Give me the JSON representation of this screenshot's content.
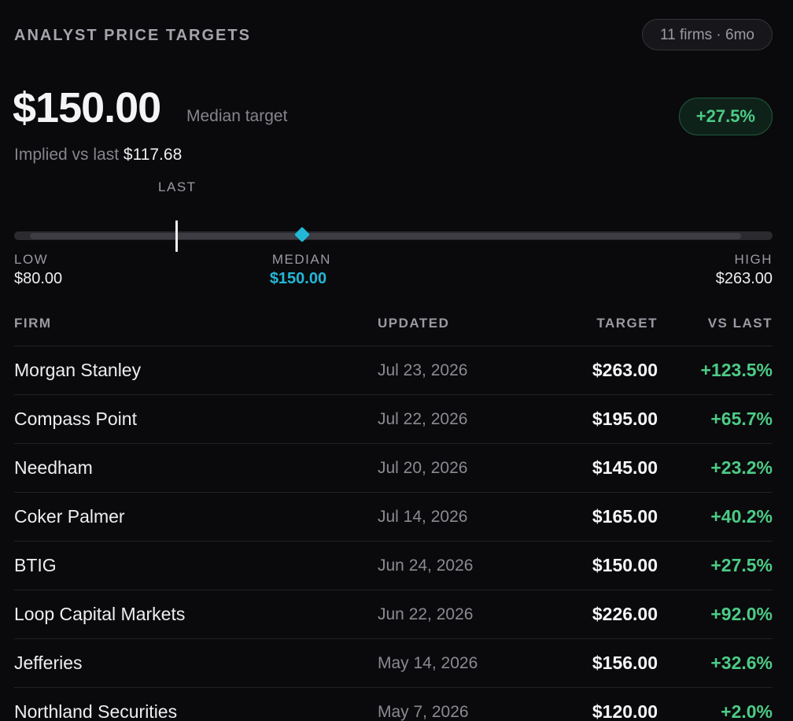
{
  "header": {
    "title": "ANALYST PRICE TARGETS",
    "firms_badge": "11 firms · 6mo"
  },
  "summary": {
    "median_price": "$150.00",
    "median_caption": "Median target",
    "implied_label": "Implied vs last",
    "last_price": "$117.68",
    "implied_change": "+27.5%",
    "accent_color": "#22b8d8",
    "positive_color": "#4ccb86"
  },
  "range": {
    "last_label": "LAST",
    "low_label": "LOW",
    "low_value": "$80.00",
    "median_label": "MEDIAN",
    "median_value": "$150.00",
    "high_label": "HIGH",
    "high_value": "$263.00",
    "low": 80,
    "high": 263,
    "median": 150,
    "last": 117.68
  },
  "table": {
    "headers": {
      "firm": "FIRM",
      "updated": "UPDATED",
      "target": "TARGET",
      "vs_last": "VS LAST"
    },
    "rows": [
      {
        "firm": "Morgan Stanley",
        "updated": "Jul 23, 2026",
        "target": "$263.00",
        "vs_last": "+123.5%"
      },
      {
        "firm": "Compass Point",
        "updated": "Jul 22, 2026",
        "target": "$195.00",
        "vs_last": "+65.7%"
      },
      {
        "firm": "Needham",
        "updated": "Jul 20, 2026",
        "target": "$145.00",
        "vs_last": "+23.2%"
      },
      {
        "firm": "Coker Palmer",
        "updated": "Jul 14, 2026",
        "target": "$165.00",
        "vs_last": "+40.2%"
      },
      {
        "firm": "BTIG",
        "updated": "Jun 24, 2026",
        "target": "$150.00",
        "vs_last": "+27.5%"
      },
      {
        "firm": "Loop Capital Markets",
        "updated": "Jun 22, 2026",
        "target": "$226.00",
        "vs_last": "+92.0%"
      },
      {
        "firm": "Jefferies",
        "updated": "May 14, 2026",
        "target": "$156.00",
        "vs_last": "+32.6%"
      },
      {
        "firm": "Northland Securities",
        "updated": "May 7, 2026",
        "target": "$120.00",
        "vs_last": "+2.0%"
      }
    ]
  }
}
